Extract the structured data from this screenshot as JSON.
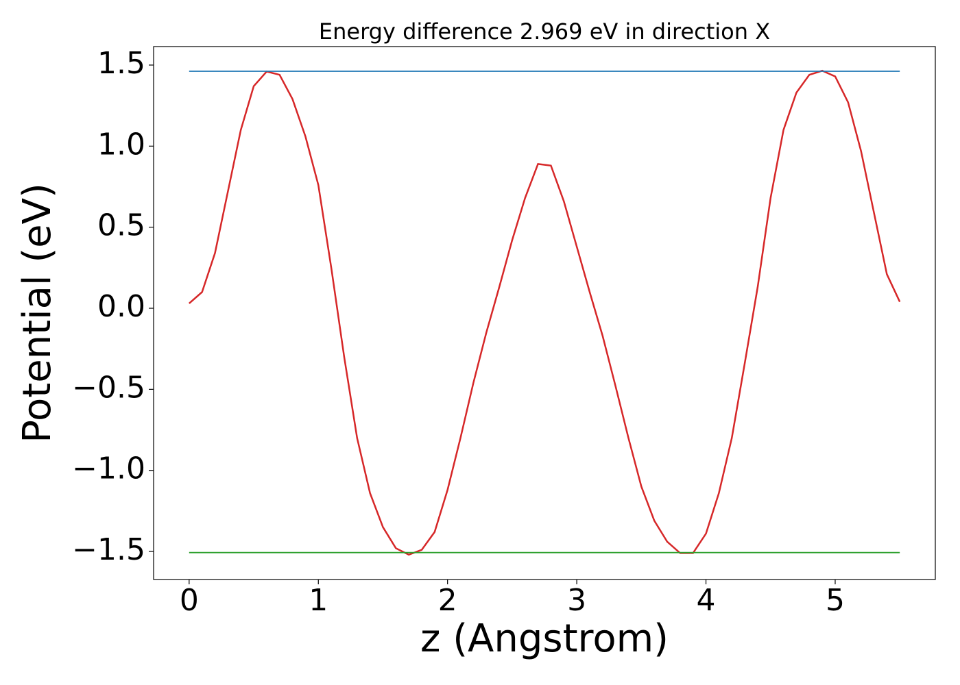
{
  "chart_data": {
    "type": "line",
    "title": "Energy difference 2.969 eV in direction X",
    "xlabel": "z (Angstrom)",
    "ylabel": "Potential (eV)",
    "xlim": [
      -0.275,
      5.775
    ],
    "ylim": [
      -1.673,
      1.614
    ],
    "xticks": [
      0,
      1,
      2,
      3,
      4,
      5
    ],
    "yticks": [
      {
        "value": -1.5,
        "label": "−1.5"
      },
      {
        "value": -1.0,
        "label": "−1.0"
      },
      {
        "value": -0.5,
        "label": "−0.5"
      },
      {
        "value": 0,
        "label": "0.0"
      },
      0.5,
      {
        "value": 1.0,
        "label": "1.0"
      },
      1.5
    ],
    "series": [
      {
        "color": "#d62728",
        "x": [
          0,
          0.1,
          0.2,
          0.3,
          0.4,
          0.5,
          0.6,
          0.7,
          0.8,
          0.9,
          1.0,
          1.1,
          1.2,
          1.3,
          1.4,
          1.5,
          1.6,
          1.7,
          1.8,
          1.9,
          2.0,
          2.1,
          2.2,
          2.3,
          2.4,
          2.5,
          2.6,
          2.7,
          2.8,
          2.9,
          3.0,
          3.1,
          3.2,
          3.3,
          3.4,
          3.5,
          3.6,
          3.7,
          3.8,
          3.9,
          4.0,
          4.1,
          4.2,
          4.3,
          4.4,
          4.5,
          4.6,
          4.7,
          4.8,
          4.9,
          5.0,
          5.1,
          5.2,
          5.3,
          5.4,
          5.5
        ],
        "values": [
          0.03,
          0.1,
          0.34,
          0.72,
          1.1,
          1.37,
          1.46,
          1.44,
          1.29,
          1.06,
          0.76,
          0.25,
          -0.3,
          -0.8,
          -1.14,
          -1.35,
          -1.48,
          -1.52,
          -1.49,
          -1.38,
          -1.12,
          -0.8,
          -0.46,
          -0.15,
          0.13,
          0.42,
          0.68,
          0.89,
          0.88,
          0.66,
          0.38,
          0.1,
          -0.17,
          -0.48,
          -0.8,
          -1.1,
          -1.31,
          -1.44,
          -1.51,
          -1.51,
          -1.39,
          -1.14,
          -0.8,
          -0.34,
          0.13,
          0.68,
          1.1,
          1.33,
          1.44,
          1.465,
          1.43,
          1.27,
          0.97,
          0.59,
          0.21,
          0.04
        ]
      },
      {
        "color": "#1f77b4",
        "x": [
          0,
          5.5
        ],
        "values": [
          1.462,
          1.462
        ]
      },
      {
        "color": "#2ca02c",
        "x": [
          0,
          5.5
        ],
        "values": [
          -1.507,
          -1.507
        ]
      }
    ]
  }
}
